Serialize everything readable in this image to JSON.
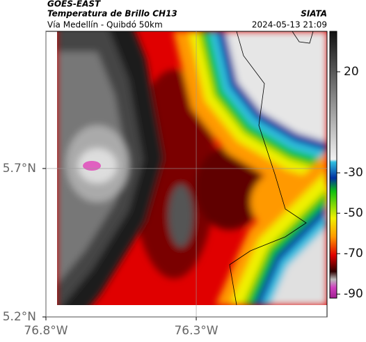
{
  "header": {
    "title": "GOES-EAST",
    "subtitle": "Temperatura de Brillo CH13",
    "route": "Vía Medellín - Quibdó 50km",
    "source": "SIATA",
    "timestamp": "2024-05-13 21:09"
  },
  "map": {
    "xlim": [
      -76.8,
      -75.865
    ],
    "ylim": [
      5.2,
      6.162
    ],
    "xticks": [
      {
        "value": -76.8,
        "label": "76.8°W"
      },
      {
        "value": -76.3,
        "label": "76.3°W"
      }
    ],
    "yticks": [
      {
        "value": 5.2,
        "label": "5.2°N"
      },
      {
        "value": 5.7,
        "label": "5.7°N"
      }
    ],
    "grid": true
  },
  "colorbar": {
    "clim": [
      -92,
      40
    ],
    "ticks": [
      20,
      -30,
      -50,
      -70,
      -90
    ]
  }
}
